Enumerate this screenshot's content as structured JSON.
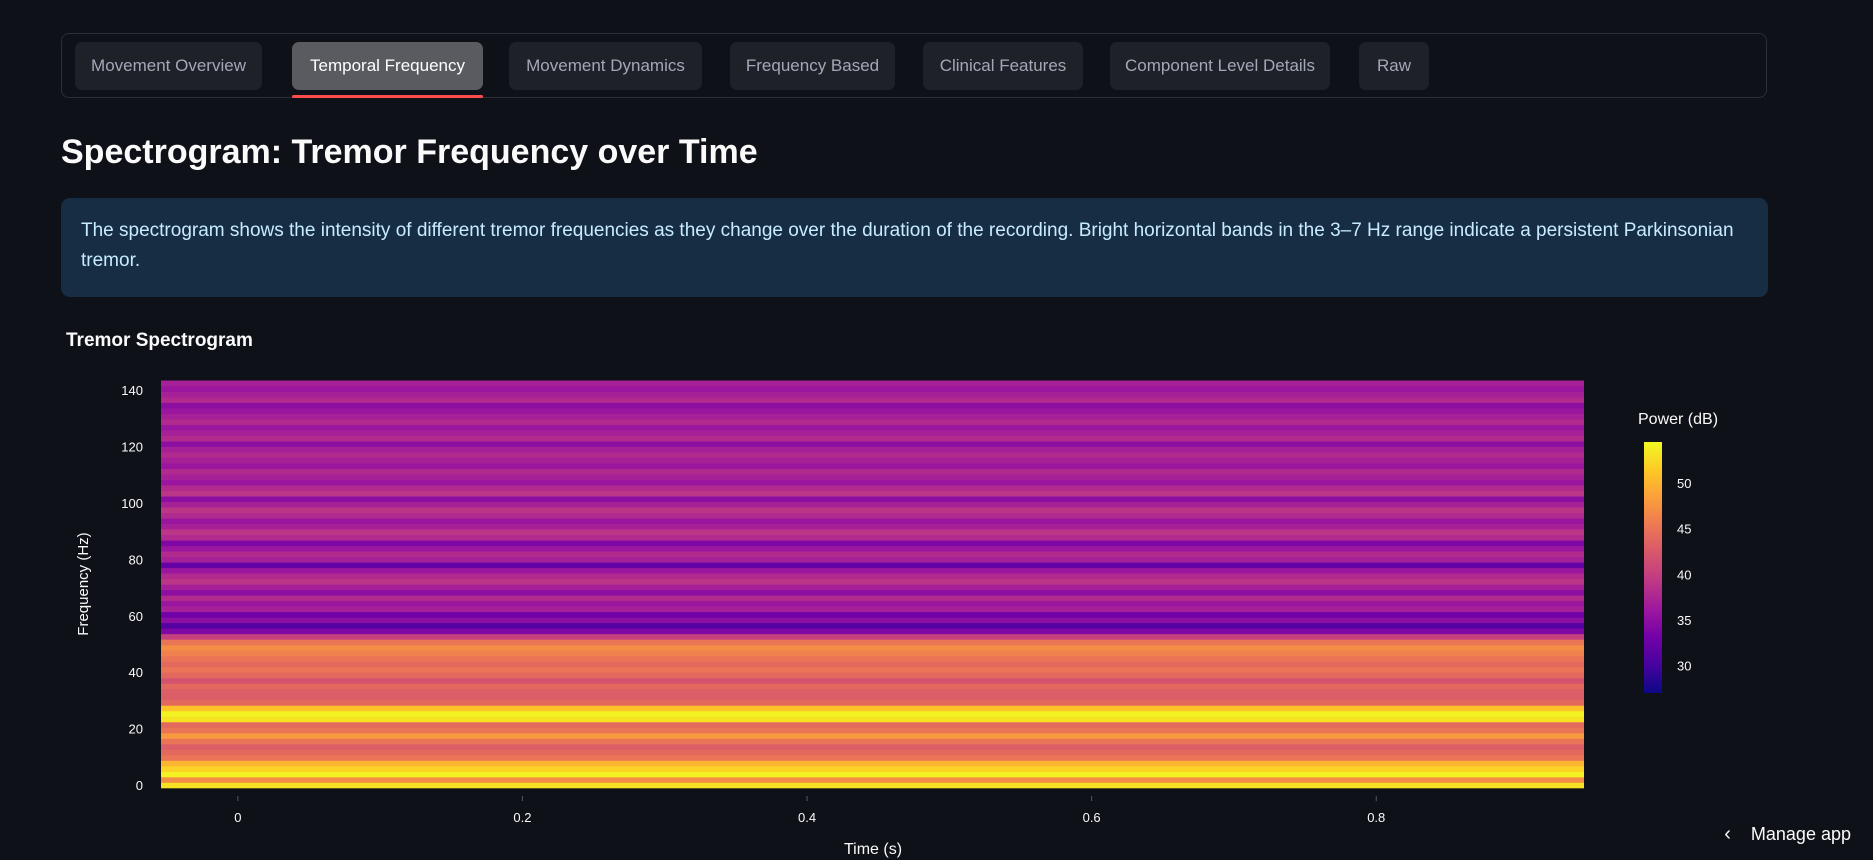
{
  "tabs": [
    {
      "label": "Movement Overview",
      "active": false
    },
    {
      "label": "Temporal Frequency",
      "active": true
    },
    {
      "label": "Movement Dynamics",
      "active": false
    },
    {
      "label": "Frequency Based",
      "active": false
    },
    {
      "label": "Clinical Features",
      "active": false
    },
    {
      "label": "Component Level Details",
      "active": false
    },
    {
      "label": "Raw",
      "active": false
    }
  ],
  "page_title": "Spectrogram: Tremor Frequency over Time",
  "info_text": "The spectrogram shows the intensity of different tremor frequencies as they change over the duration of the recording. Bright horizontal bands in the 3–7 Hz range indicate a persistent Parkinsonian tremor.",
  "chart_title": "Tremor Spectrogram",
  "manage_app": "Manage app",
  "chart_data": {
    "type": "heatmap",
    "title": "Tremor Spectrogram",
    "xlabel": "Time (s)",
    "ylabel": "Frequency (Hz)",
    "x_ticks": [
      0,
      0.2,
      0.4,
      0.6,
      0.8
    ],
    "y_ticks": [
      0,
      20,
      40,
      60,
      80,
      100,
      120,
      140
    ],
    "xlim": [
      -0.054,
      0.946
    ],
    "ylim": [
      -1,
      143.5
    ],
    "colorbar": {
      "title": "Power (dB)",
      "ticks": [
        30,
        35,
        40,
        45,
        50
      ],
      "range": [
        27,
        54.5
      ],
      "colorscale": "plasma"
    },
    "frequency_bin_hz": 1.95,
    "power_db": [
      53,
      47,
      54,
      52,
      50,
      45,
      44,
      43,
      45,
      48,
      45,
      44,
      53,
      54,
      51,
      44,
      43,
      43,
      44,
      42,
      44,
      45,
      44,
      45,
      46,
      47,
      45,
      40,
      34,
      31,
      35,
      33,
      37,
      36,
      38,
      35,
      37,
      39,
      38,
      36,
      32,
      37,
      38,
      36,
      34,
      38,
      39,
      37,
      36,
      38,
      39,
      37,
      35,
      39,
      38,
      36,
      37,
      38,
      36,
      37,
      38,
      37,
      35,
      38,
      37,
      36,
      38,
      37,
      36,
      35,
      38,
      37,
      36,
      37,
      38,
      36,
      37,
      38,
      37,
      36,
      38,
      37,
      36,
      37,
      38,
      37,
      36,
      38,
      37,
      36,
      37,
      38,
      37,
      36,
      38,
      37,
      36,
      37,
      38,
      32,
      33,
      37,
      38,
      37,
      36,
      38,
      37,
      36,
      37,
      38,
      37,
      36,
      38,
      37,
      36,
      37,
      38,
      37,
      36,
      38,
      37,
      36,
      37,
      38,
      37,
      36,
      38,
      37,
      36,
      37,
      38,
      37,
      36,
      38,
      37,
      36,
      37,
      33,
      32,
      35,
      36,
      37,
      38,
      37,
      36,
      38,
      37,
      36,
      37,
      38,
      37,
      36,
      38,
      37,
      36,
      37,
      38,
      37,
      36,
      38,
      37,
      36,
      37,
      38,
      37,
      36,
      38,
      37,
      36,
      37,
      38,
      37,
      36,
      38,
      37,
      36,
      37,
      33,
      33,
      36,
      37,
      37,
      36,
      38,
      37,
      36,
      37,
      38,
      37,
      36,
      38,
      37,
      36,
      37,
      38,
      37,
      36,
      38,
      37,
      36,
      37,
      38,
      37,
      36,
      38,
      37,
      36,
      37,
      38,
      37,
      36,
      38,
      37,
      36,
      37,
      38,
      37,
      36,
      38,
      37,
      36,
      37,
      38,
      37,
      36,
      38,
      37,
      36,
      37,
      38,
      37,
      36,
      38,
      37,
      36,
      37,
      38,
      37,
      36,
      38,
      37,
      36,
      37,
      38,
      37,
      36,
      38,
      37,
      36,
      37,
      38,
      37,
      36,
      38,
      37,
      36,
      37,
      38,
      37,
      36,
      38,
      37,
      36,
      37,
      38,
      37,
      36,
      38,
      37,
      36,
      37,
      38,
      37,
      36,
      38,
      37,
      36,
      37,
      38,
      37,
      36,
      38,
      37,
      36,
      37,
      38,
      37,
      36,
      38,
      37,
      36,
      37,
      38,
      37,
      36,
      38,
      37,
      36,
      37,
      38,
      37,
      36,
      38,
      37,
      36,
      37,
      38,
      37,
      36,
      38,
      37,
      36,
      37,
      38,
      37,
      36,
      38,
      37,
      36,
      37,
      38,
      37,
      36,
      38,
      37,
      36,
      37,
      38,
      37,
      36,
      38,
      37,
      36,
      37,
      38,
      37,
      36,
      38,
      37,
      36,
      37,
      38,
      37,
      36,
      38,
      37,
      36,
      37,
      38,
      37,
      36,
      38,
      37,
      36,
      37,
      38,
      37,
      36,
      38,
      37,
      36,
      37,
      38,
      37,
      36,
      38,
      37,
      36,
      37,
      38,
      37,
      36,
      38,
      37,
      36,
      37,
      38,
      37,
      36,
      38,
      37,
      36,
      37,
      38,
      37,
      36,
      38,
      37,
      36,
      37,
      38,
      37,
      36,
      38,
      37,
      36,
      37,
      38,
      37,
      36,
      38,
      37,
      36,
      37,
      38,
      37,
      36,
      38,
      37,
      36,
      37,
      38,
      37,
      36,
      38,
      37,
      36,
      37,
      38,
      37,
      36,
      38,
      37,
      36,
      37,
      38,
      37,
      36,
      38,
      37,
      36,
      37,
      38,
      37,
      36,
      38,
      37,
      36,
      37,
      38,
      37,
      36,
      38,
      37,
      36,
      37,
      38,
      37,
      36,
      38,
      37,
      36,
      37,
      38,
      37,
      36,
      38,
      37,
      36,
      37,
      38,
      37,
      36,
      38,
      37,
      36,
      37,
      38,
      37,
      36,
      38,
      37,
      36,
      37,
      38,
      37,
      36,
      38,
      37,
      36,
      37,
      38,
      37,
      36,
      38,
      37,
      36,
      37,
      38,
      37,
      36,
      38,
      37,
      36,
      37,
      38,
      37,
      36,
      38,
      37,
      36,
      37,
      38,
      37,
      36,
      38,
      37,
      36,
      37,
      38,
      37,
      36,
      38,
      37,
      36,
      37,
      38,
      37,
      36,
      38,
      37,
      36,
      37,
      38,
      37,
      36
    ]
  },
  "colors": {
    "background": "#0e1117",
    "info_bg": "#172d43",
    "info_text": "#c7ebff",
    "tab_active_underline": "#ff4b4b"
  }
}
